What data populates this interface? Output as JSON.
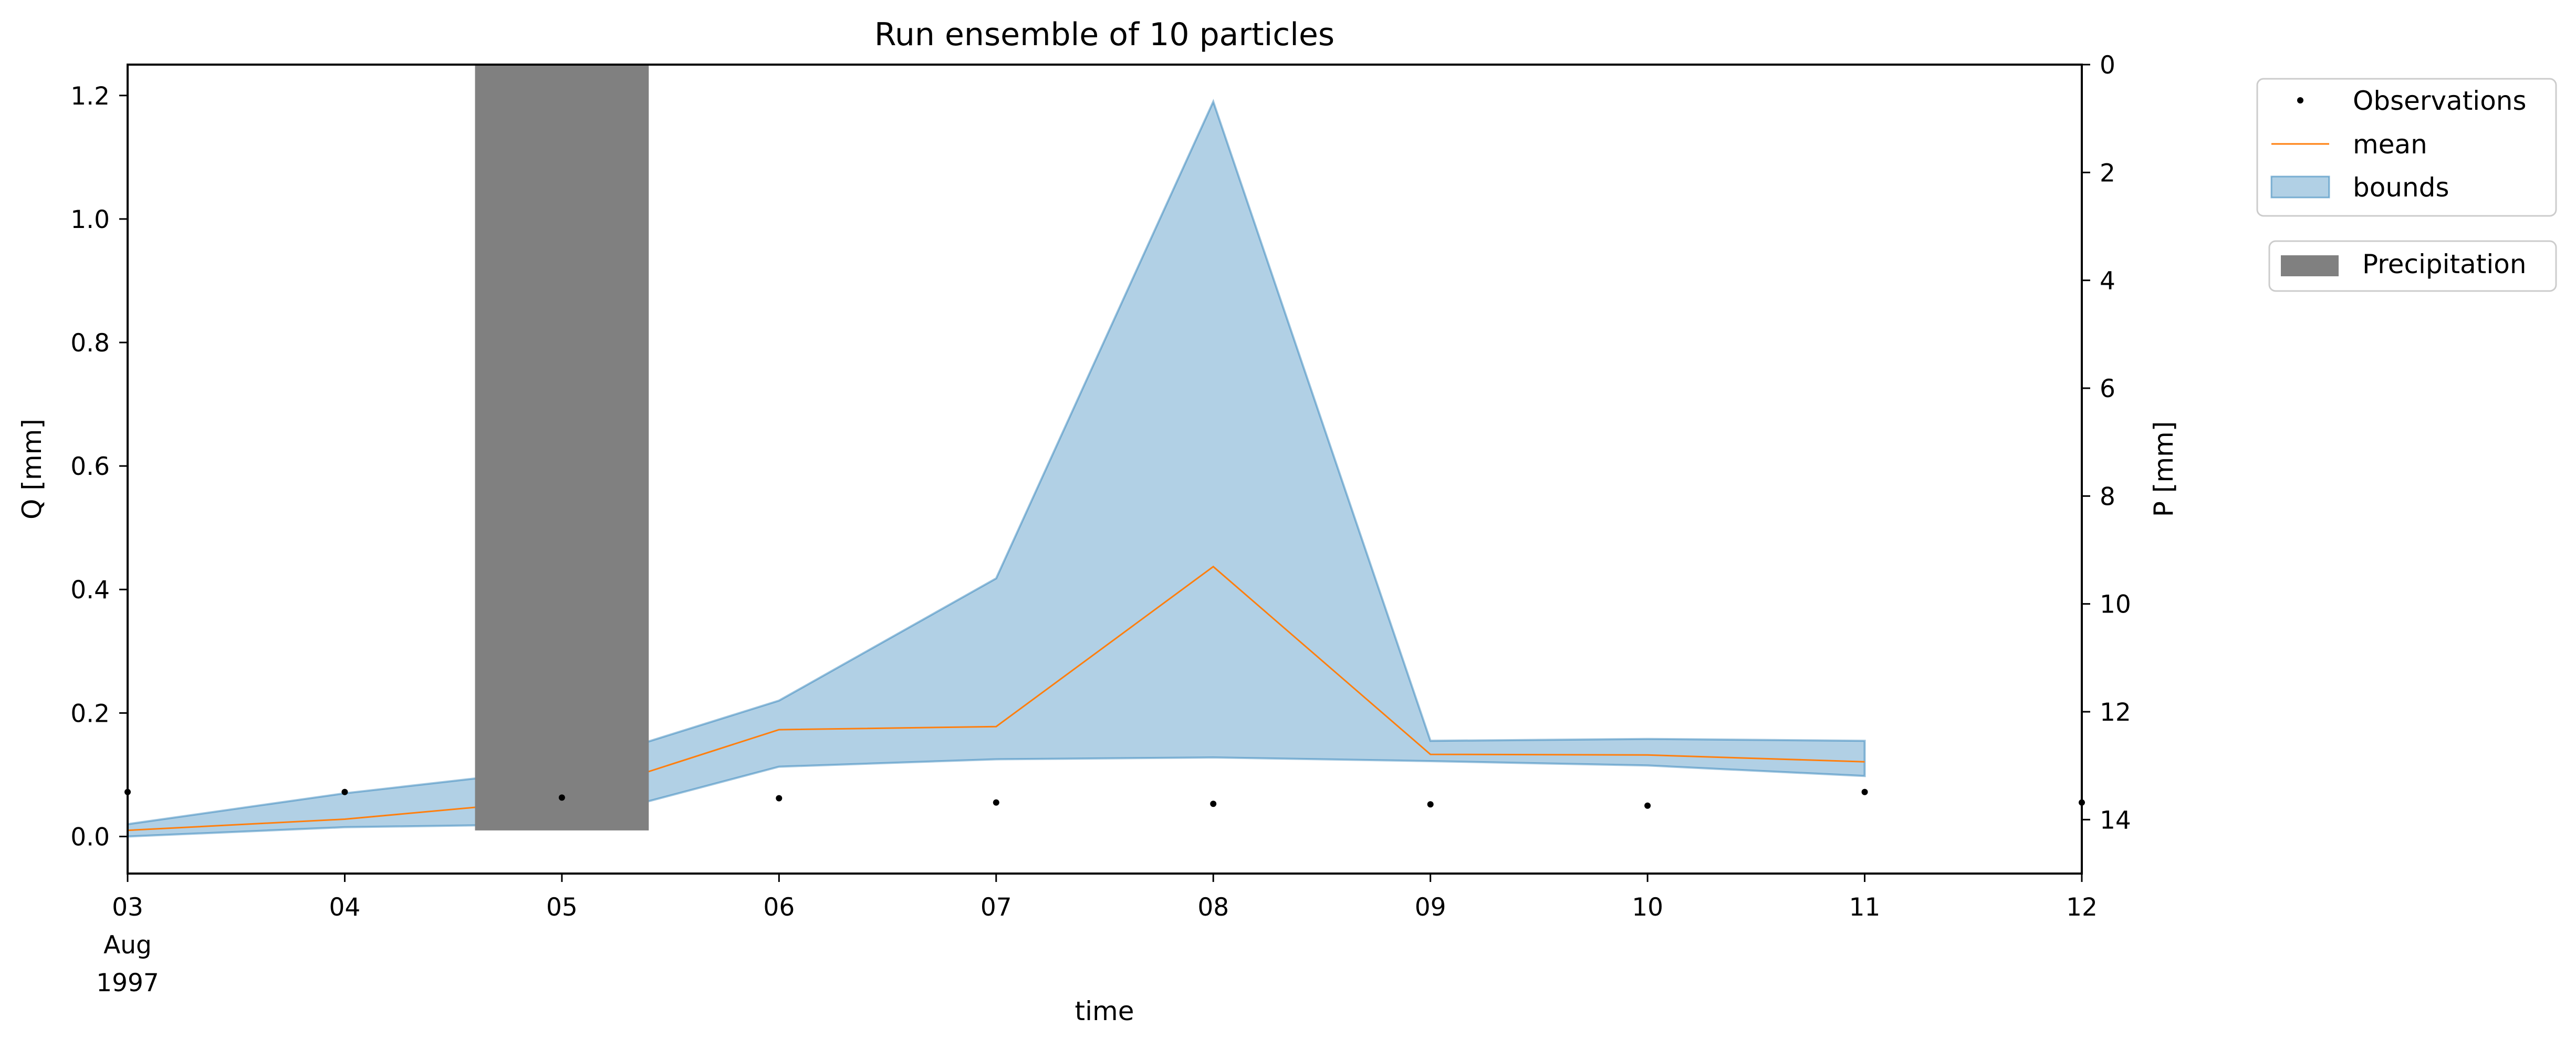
{
  "chart_data": {
    "type": "line",
    "title": "Run ensemble of 10 particles",
    "xlabel": "time",
    "ylabel_left": "Q [mm]",
    "ylabel_right": "P [mm]",
    "x_ticks": [
      "03",
      "04",
      "05",
      "06",
      "07",
      "08",
      "09",
      "10",
      "11",
      "12"
    ],
    "x_tick_sub": [
      "Aug",
      "1997"
    ],
    "xlim": [
      "1997-08-03",
      "1997-08-12"
    ],
    "ylim_left": [
      -0.06,
      1.25
    ],
    "yticks_left": [
      "0.0",
      "0.2",
      "0.4",
      "0.6",
      "0.8",
      "1.0",
      "1.2"
    ],
    "ylim_right": [
      15,
      0
    ],
    "yticks_right": [
      "0",
      "2",
      "4",
      "6",
      "8",
      "10",
      "12",
      "14"
    ],
    "right_axis_inverted": true,
    "grid": false,
    "x": [
      "1997-08-03",
      "1997-08-04",
      "1997-08-05",
      "1997-08-06",
      "1997-08-07",
      "1997-08-08",
      "1997-08-09",
      "1997-08-10",
      "1997-08-11"
    ],
    "series": [
      {
        "name": "Observations",
        "kind": "scatter",
        "color": "#000000",
        "x": [
          "1997-08-03",
          "1997-08-04",
          "1997-08-05",
          "1997-08-06",
          "1997-08-07",
          "1997-08-08",
          "1997-08-09",
          "1997-08-10",
          "1997-08-11",
          "1997-08-12"
        ],
        "values": [
          0.072,
          0.072,
          0.063,
          0.062,
          0.055,
          0.053,
          0.052,
          0.05,
          0.072,
          0.055
        ]
      },
      {
        "name": "mean",
        "kind": "line",
        "color": "#ff7f0e",
        "values": [
          0.01,
          0.028,
          0.06,
          0.173,
          0.178,
          0.437,
          0.133,
          0.132,
          0.121
        ]
      },
      {
        "name": "bounds",
        "kind": "band",
        "color": "#1f77b4",
        "upper": [
          0.02,
          0.07,
          0.11,
          0.22,
          0.418,
          1.19,
          0.155,
          0.158,
          0.155
        ],
        "lower": [
          0.0,
          0.015,
          0.02,
          0.113,
          0.125,
          0.128,
          0.122,
          0.115,
          0.098
        ]
      },
      {
        "name": "Precipitation",
        "kind": "bar",
        "axis": "right",
        "color": "#808080",
        "x": [
          "1997-08-05"
        ],
        "values": [
          14.2
        ],
        "bar_width_days": 0.8
      }
    ],
    "legend": {
      "placement": "outside top-right",
      "groups": [
        [
          "Observations",
          "mean",
          "bounds"
        ],
        [
          "Precipitation"
        ]
      ]
    }
  }
}
